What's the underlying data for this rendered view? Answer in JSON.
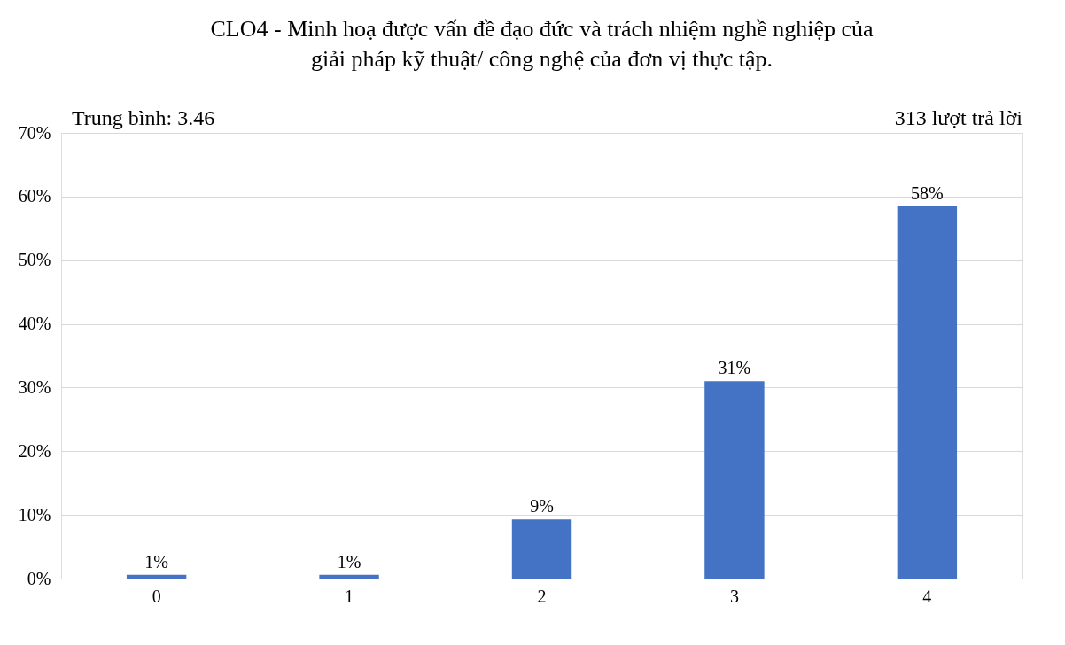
{
  "chart_data": {
    "type": "bar",
    "title": "CLO4 - Minh hoạ được vấn đề đạo đức và trách nhiệm nghề nghiệp của\ngiải pháp kỹ thuật/ công nghệ của đơn vị thực tập.",
    "categories": [
      "0",
      "1",
      "2",
      "3",
      "4"
    ],
    "values": [
      0.6,
      0.6,
      9.3,
      31,
      58.5
    ],
    "value_labels": [
      "1%",
      "1%",
      "9%",
      "31%",
      "58%"
    ],
    "color": "#4472c4",
    "ylim": [
      0,
      70
    ],
    "yticks": [
      {
        "value": 0,
        "label": "0%"
      },
      {
        "value": 10,
        "label": "10%"
      },
      {
        "value": 20,
        "label": "20%"
      },
      {
        "value": 30,
        "label": "30%"
      },
      {
        "value": 40,
        "label": "40%"
      },
      {
        "value": 50,
        "label": "50%"
      },
      {
        "value": 60,
        "label": "60%"
      },
      {
        "value": 70,
        "label": "70%"
      }
    ],
    "grid": "y",
    "annotations": [
      "Trung bình: 3.46",
      "313 lượt trả lời"
    ]
  }
}
